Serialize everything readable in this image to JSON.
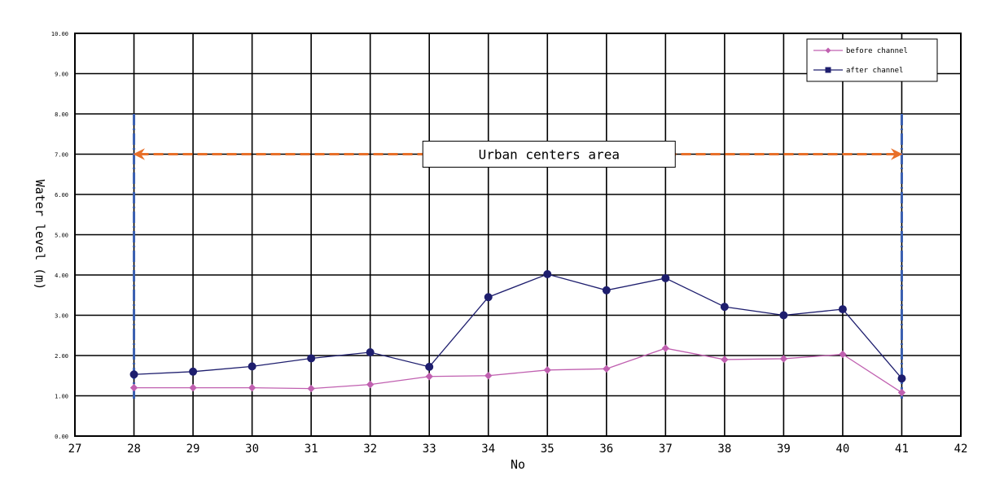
{
  "chart_data": {
    "type": "line",
    "xlabel": "No",
    "ylabel": "Water level (m)",
    "xlim": [
      27,
      42
    ],
    "ylim": [
      0,
      10
    ],
    "grid": true,
    "legend_position": "top-right",
    "x_ticks": [
      "27",
      "28",
      "29",
      "30",
      "31",
      "32",
      "33",
      "34",
      "35",
      "36",
      "37",
      "38",
      "39",
      "40",
      "41",
      "42"
    ],
    "y_ticks": [
      "0.00",
      "1.00",
      "2.00",
      "3.00",
      "4.00",
      "5.00",
      "6.00",
      "7.00",
      "8.00",
      "9.00",
      "10.00"
    ],
    "x": [
      28,
      29,
      30,
      31,
      32,
      33,
      34,
      35,
      36,
      37,
      38,
      39,
      40,
      41
    ],
    "series": [
      {
        "name": "before channel",
        "color": "#c060b0",
        "marker": "diamond",
        "values": [
          1.2,
          1.2,
          1.2,
          1.18,
          1.28,
          1.48,
          1.5,
          1.64,
          1.67,
          2.18,
          1.9,
          1.92,
          2.03,
          1.08
        ]
      },
      {
        "name": "after channel",
        "color": "#1e1e6e",
        "marker": "circle",
        "values": [
          1.53,
          1.6,
          1.73,
          1.93,
          2.08,
          1.72,
          3.45,
          4.02,
          3.62,
          3.92,
          3.21,
          3.0,
          3.15,
          1.43
        ]
      }
    ],
    "annotations": {
      "label": "Urban centers area",
      "x_start": 28,
      "x_end": 41,
      "y_level": 7.0,
      "boundary_top": 8.0,
      "arrow_color": "#e8702a",
      "boundary_color": "#3a5fb0"
    }
  }
}
